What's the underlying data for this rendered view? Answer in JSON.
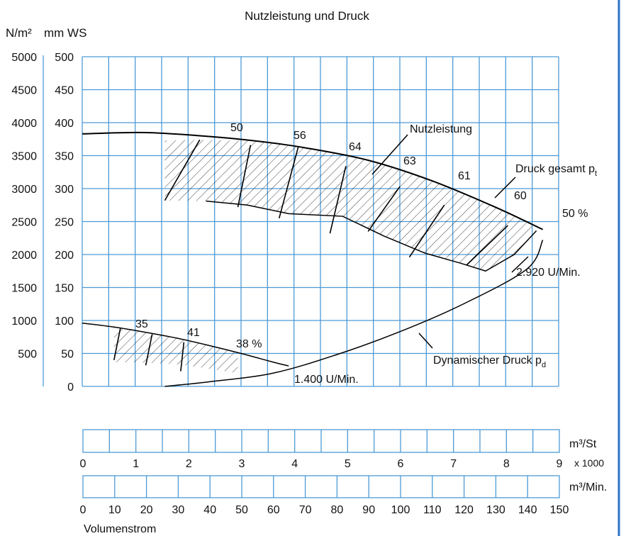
{
  "chart_data": {
    "type": "line",
    "title": "Nutzleistung und Druck",
    "yaxis_left_unit": "N/m²",
    "yaxis_right_unit": "mm WS",
    "y_ticks_pa": [
      "5000",
      "4500",
      "4000",
      "3500",
      "3000",
      "2500",
      "2000",
      "1500",
      "1000",
      "500"
    ],
    "y_ticks_mmws": [
      "500",
      "450",
      "400",
      "350",
      "300",
      "250",
      "200",
      "150",
      "100",
      "50",
      "0"
    ],
    "ylim_mmws": [
      0,
      500
    ],
    "xlim_m3min": [
      0,
      150
    ],
    "x1_label": "m³/St",
    "x1_multiplier": "x 1000",
    "x1_ticks": [
      "0",
      "1",
      "2",
      "3",
      "4",
      "5",
      "6",
      "7",
      "8",
      "9"
    ],
    "x2_label": "m³/Min.",
    "x2_ticks": [
      "0",
      "10",
      "20",
      "30",
      "40",
      "50",
      "60",
      "70",
      "80",
      "90",
      "100",
      "110",
      "120",
      "130",
      "140",
      "150"
    ],
    "xlabel": "Volumenstrom",
    "grid": true,
    "series": [
      {
        "name": "Druck gesamt pt (2.920 U/Min.)",
        "x": [
          0,
          20,
          40,
          55,
          70,
          90,
          110,
          130,
          145
        ],
        "y": [
          383,
          385,
          379,
          372,
          362,
          343,
          312,
          272,
          238
        ]
      },
      {
        "name": "Dynamischer Druck pd",
        "x": [
          26,
          40,
          60,
          80,
          100,
          120,
          140,
          145
        ],
        "y": [
          0,
          7,
          20,
          48,
          83,
          125,
          178,
          222
        ]
      },
      {
        "name": "1.400 U/Min.",
        "x": [
          0,
          10,
          20,
          30,
          40,
          50,
          60,
          65
        ],
        "y": [
          96,
          90,
          82,
          73,
          62,
          50,
          37,
          31
        ]
      }
    ],
    "efficiency_labels_2920": [
      "50",
      "56",
      "64",
      "63",
      "61",
      "60",
      "50 %"
    ],
    "efficiency_labels_1400": [
      "35",
      "41",
      "38 %"
    ],
    "annotations": {
      "nutzleistung": "Nutzleistung",
      "druck_gesamt": "Druck gesamt p",
      "druck_gesamt_sub": "t",
      "dynamisch": "Dynamischer Druck p",
      "dynamisch_sub": "d",
      "speed_high": "2.920 U/Min.",
      "speed_low": "1.400 U/Min."
    }
  },
  "colors": {
    "grid": "#4d9ad6",
    "curve": "#000000",
    "frame": "#2e74c8"
  }
}
